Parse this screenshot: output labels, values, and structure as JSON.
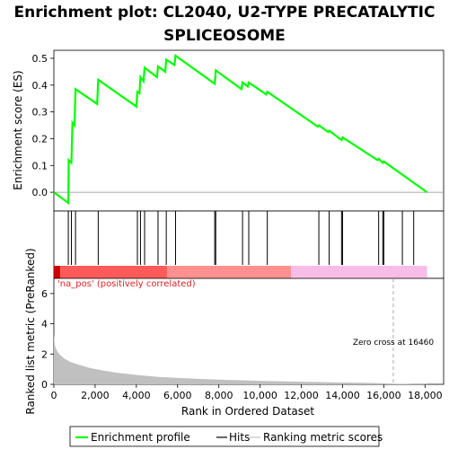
{
  "chart_data": {
    "type": "line",
    "title_line1": "Enrichment plot: CL2040, U2-TYPE PRECATALYTIC",
    "title_line2": "SPLICEOSOME",
    "top_panel": {
      "ylabel": "Enrichment score (ES)",
      "ylim": [
        -0.07,
        0.53
      ],
      "yticks": [
        0.0,
        0.1,
        0.2,
        0.3,
        0.4,
        0.5
      ],
      "ytick_labels": [
        "0.0",
        "0.1",
        "0.2",
        "0.3",
        "0.4",
        "0.5"
      ],
      "series": [
        {
          "name": "Enrichment profile",
          "color": "#00ff00",
          "x": [
            0,
            700,
            720,
            850,
            900,
            1000,
            1050,
            2100,
            2150,
            4000,
            4050,
            4150,
            4200,
            4350,
            4400,
            5000,
            5050,
            5400,
            5450,
            5850,
            5900,
            7800,
            7850,
            9100,
            9150,
            9400,
            9450,
            10300,
            10350,
            12800,
            12850,
            13300,
            13350,
            13950,
            14000,
            15700,
            15750,
            15950,
            16000,
            18100
          ],
          "y": [
            0.0,
            -0.04,
            0.12,
            0.11,
            0.26,
            0.25,
            0.385,
            0.33,
            0.42,
            0.32,
            0.375,
            0.37,
            0.43,
            0.415,
            0.465,
            0.43,
            0.47,
            0.45,
            0.495,
            0.475,
            0.51,
            0.405,
            0.455,
            0.385,
            0.41,
            0.395,
            0.41,
            0.365,
            0.375,
            0.245,
            0.25,
            0.225,
            0.23,
            0.195,
            0.205,
            0.12,
            0.125,
            0.11,
            0.115,
            0.0
          ]
        }
      ]
    },
    "hits_panel": {
      "hits": [
        700,
        850,
        1050,
        2150,
        4050,
        4200,
        4400,
        5050,
        5450,
        5900,
        7800,
        7850,
        9150,
        9450,
        10350,
        12850,
        13350,
        13950,
        14000,
        15750,
        15950,
        16000,
        16900,
        17450
      ],
      "band_colors": [
        {
          "from": 0,
          "to": 5500,
          "color": "#ff5a5a"
        },
        {
          "from": 5500,
          "to": 11500,
          "color": "#ff9090"
        },
        {
          "from": 11500,
          "to": 18100,
          "color": "#f8bde6"
        }
      ]
    },
    "bottom_panel": {
      "ylabel": "Ranked list metric (PreRanked)",
      "xlabel": "Rank in Ordered Dataset",
      "ylim": [
        0,
        7
      ],
      "yticks": [
        0,
        2,
        4,
        6
      ],
      "ytick_labels": [
        "0",
        "2",
        "4",
        "6"
      ],
      "xlim": [
        0,
        18900
      ],
      "xticks": [
        0,
        2000,
        4000,
        6000,
        8000,
        10000,
        12000,
        14000,
        16000,
        18000
      ],
      "xtick_labels": [
        "0",
        "2,000",
        "4,000",
        "6,000",
        "8,000",
        "10,000",
        "12,000",
        "14,000",
        "16,000",
        "18,000"
      ],
      "metric_curve": {
        "x": [
          0,
          50,
          150,
          300,
          500,
          800,
          1200,
          1700,
          2300,
          3000,
          4000,
          5000,
          6000,
          7000,
          8000,
          9000,
          10000,
          11000,
          12000,
          13000,
          14000,
          15000,
          16000,
          16460,
          17000,
          17500,
          18000,
          18100
        ],
        "y": [
          3.3,
          2.6,
          2.2,
          1.95,
          1.7,
          1.48,
          1.3,
          1.1,
          0.93,
          0.78,
          0.62,
          0.5,
          0.42,
          0.36,
          0.31,
          0.27,
          0.23,
          0.2,
          0.17,
          0.15,
          0.12,
          0.1,
          0.07,
          0.05,
          0.03,
          0.02,
          0.01,
          0.01
        ],
        "color": "#c0c0c0"
      },
      "pos_label": "'na_pos' (positively correlated)",
      "pos_label_color": "#dd2222",
      "zero_cross_x": 16460,
      "zero_cross_label": "Zero cross at 16460"
    },
    "legend": {
      "items": [
        {
          "label": "Enrichment profile",
          "color": "#00ff00"
        },
        {
          "label": "Hits",
          "color": "#000000"
        },
        {
          "label": "Ranking metric scores",
          "color": "#c0c0c0"
        }
      ]
    }
  }
}
